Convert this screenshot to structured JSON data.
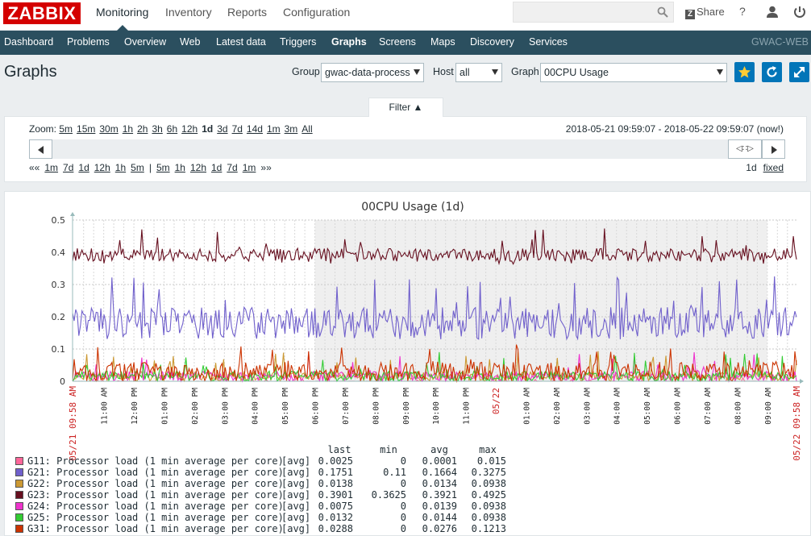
{
  "header": {
    "logo": "ZABBIX",
    "main_menu": [
      "Monitoring",
      "Inventory",
      "Reports",
      "Configuration"
    ],
    "active_main": "Monitoring",
    "share": "Share",
    "help": "?",
    "search_placeholder": ""
  },
  "subnav": {
    "items": [
      "Dashboard",
      "Problems",
      "Overview",
      "Web",
      "Latest data",
      "Triggers",
      "Graphs",
      "Screens",
      "Maps",
      "Discovery",
      "Services"
    ],
    "active": "Graphs",
    "server_name": "GWAC-WEB"
  },
  "page": {
    "title": "Graphs",
    "group_label": "Group",
    "group_value": "gwac-data-process",
    "host_label": "Host",
    "host_value": "all",
    "graph_label": "Graph",
    "graph_value": "00CPU Usage"
  },
  "filter": {
    "tab_label": "Filter ▲",
    "zoom_label": "Zoom:",
    "zoom_options": [
      "5m",
      "15m",
      "30m",
      "1h",
      "2h",
      "3h",
      "6h",
      "12h",
      "1d",
      "3d",
      "7d",
      "14d",
      "1m",
      "3m",
      "All"
    ],
    "zoom_active": "1d",
    "period": "2018-05-21 09:59:07 - 2018-05-22 09:59:07 (now!)",
    "back_prefix": "««",
    "back_options": [
      "1m",
      "7d",
      "1d",
      "12h",
      "1h",
      "5m"
    ],
    "separator": "|",
    "fwd_options": [
      "5m",
      "1h",
      "12h",
      "1d",
      "7d",
      "1m"
    ],
    "fwd_suffix": "»»",
    "period_len": "1d",
    "fixed_label": "fixed",
    "handle_label": "◁∷▷"
  },
  "chart_data": {
    "type": "line",
    "title": "00CPU Usage (1d)",
    "ylim": [
      0,
      0.5
    ],
    "y_ticks": [
      "0",
      "0.1",
      "0.2",
      "0.3",
      "0.4",
      "0.5"
    ],
    "x_start_label": "05/21 09:58 AM",
    "x_end_label": "05/22 09:58 AM",
    "x_mid_label": "05/22",
    "x_tick_labels": [
      "11:00 AM",
      "12:00 PM",
      "01:00 PM",
      "02:00 PM",
      "03:00 PM",
      "04:00 PM",
      "05:00 PM",
      "06:00 PM",
      "07:00 PM",
      "08:00 PM",
      "09:00 PM",
      "10:00 PM",
      "11:00 PM",
      "05/22",
      "01:00 AM",
      "02:00 AM",
      "03:00 AM",
      "04:00 AM",
      "05:00 AM",
      "06:00 AM",
      "07:00 AM",
      "08:00 AM",
      "09:00 AM"
    ],
    "shaded_range": [
      "06:00 PM",
      "09:00 AM"
    ],
    "legend_headers": [
      "last",
      "min",
      "avg",
      "max"
    ],
    "series": [
      {
        "name": "G11: Processor load (1 min average per core)",
        "func": "[avg]",
        "color": "#ff6699",
        "last": "0.0025",
        "min": "0",
        "avg": "0.0001",
        "max": "0.015"
      },
      {
        "name": "G21: Processor load (1 min average per core)",
        "func": "[avg]",
        "color": "#7060cc",
        "last": "0.1751",
        "min": "0.11",
        "avg": "0.1664",
        "max": "0.3275"
      },
      {
        "name": "G22: Processor load (1 min average per core)",
        "func": "[avg]",
        "color": "#cc9933",
        "last": "0.0138",
        "min": "0",
        "avg": "0.0134",
        "max": "0.0938"
      },
      {
        "name": "G23: Processor load (1 min average per core)",
        "func": "[avg]",
        "color": "#660f1f",
        "last": "0.3901",
        "min": "0.3625",
        "avg": "0.3921",
        "max": "0.4925"
      },
      {
        "name": "G24: Processor load (1 min average per core)",
        "func": "[avg]",
        "color": "#ee33cc",
        "last": "0.0075",
        "min": "0",
        "avg": "0.0139",
        "max": "0.0938"
      },
      {
        "name": "G25: Processor load (1 min average per core)",
        "func": "[avg]",
        "color": "#33cc33",
        "last": "0.0132",
        "min": "0",
        "avg": "0.0144",
        "max": "0.0938"
      },
      {
        "name": "G31: Processor load (1 min average per core)",
        "func": "[avg]",
        "color": "#cc3300",
        "last": "0.0288",
        "min": "0",
        "avg": "0.0276",
        "max": "0.1213"
      }
    ]
  }
}
